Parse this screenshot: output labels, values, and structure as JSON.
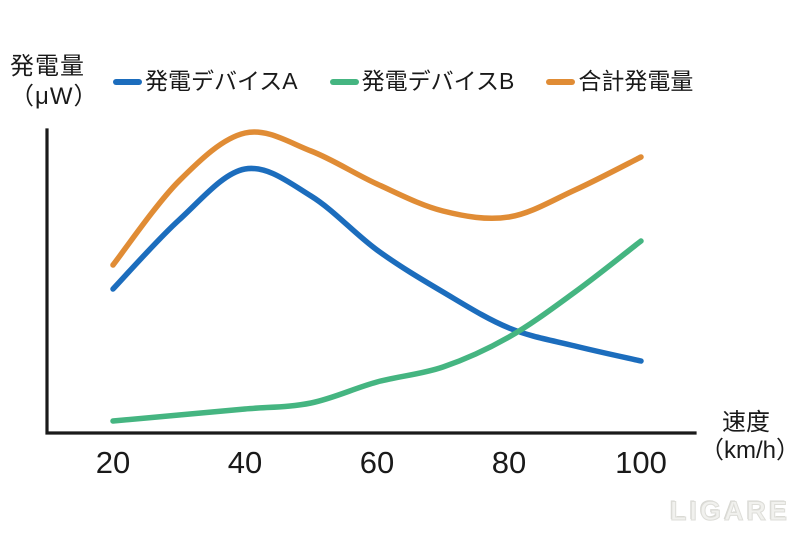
{
  "y_axis_label": {
    "line1": "発電量",
    "line2": "（μW）"
  },
  "x_axis_label": {
    "line1": "速度",
    "line2": "（km/h）"
  },
  "legend": [
    {
      "id": "device-a",
      "label": "発電デバイスA",
      "color": "#1c6dbd"
    },
    {
      "id": "device-b",
      "label": "発電デバイスB",
      "color": "#45b581"
    },
    {
      "id": "total",
      "label": "合計発電量",
      "color": "#e08c35"
    }
  ],
  "watermark": "LIGARE",
  "colors": {
    "axis": "#1a1a1a",
    "text": "#1a1a1a",
    "background": "#ffffff",
    "watermark": "#e4e4e0"
  },
  "chart_data": {
    "type": "line",
    "title": "",
    "xlabel": "速度 (km/h)",
    "ylabel": "発電量 (μW)",
    "x": [
      20,
      30,
      40,
      50,
      60,
      70,
      80,
      90,
      100
    ],
    "x_ticks": [
      "20",
      "40",
      "60",
      "80",
      "100"
    ],
    "x_tick_values": [
      20,
      40,
      60,
      80,
      100
    ],
    "y_axis_numbers_shown": false,
    "ylim": [
      0,
      105
    ],
    "xlim": [
      10,
      108
    ],
    "grid": false,
    "legend_position": "top",
    "series": [
      {
        "id": "device-a",
        "name": "発電デバイスA",
        "color": "#1c6dbd",
        "values": [
          48,
          71,
          88,
          79,
          61,
          47,
          35,
          29,
          24
        ]
      },
      {
        "id": "device-b",
        "name": "発電デバイスB",
        "color": "#45b581",
        "values": [
          4,
          6,
          8,
          10,
          17,
          22,
          32,
          47,
          64
        ]
      },
      {
        "id": "total",
        "name": "合計発電量",
        "color": "#e08c35",
        "values": [
          56,
          84,
          100,
          94,
          83,
          74,
          72,
          81,
          92
        ]
      }
    ]
  }
}
